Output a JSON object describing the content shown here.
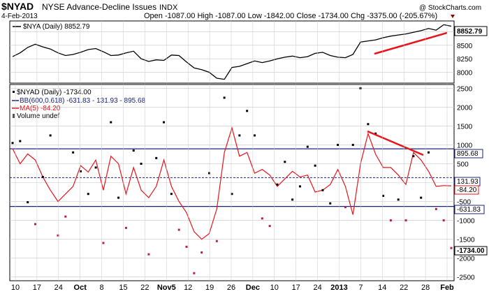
{
  "header": {
    "symbol": "$NYAD",
    "name": "NYSE Advance-Decline Issues",
    "exchange": "INDX",
    "watermark": "@ StockCharts.com",
    "date": "4-Feb-2013",
    "ohlc": "Open -1087.00  High -1087.00  Low -1842.00  Close -1734.00  Chg -3375.00 (-205.67%)"
  },
  "colors": {
    "nya_line": "#000000",
    "nyad_points": "#000000",
    "nyad_points_low": "#c2185b",
    "ma_line": "#e8141b",
    "bb_line": "#1a237e",
    "annotation": "#e8141b",
    "grid": "#c8c8c8"
  },
  "chart_data": [
    {
      "type": "line",
      "panel": "upper",
      "legend": "$NYA (Daily) 8852.79",
      "series": [
        {
          "name": "$NYA (Daily)",
          "x": [
            "Sep 10",
            "Sep 12",
            "Sep 14",
            "Sep 17",
            "Sep 19",
            "Sep 21",
            "Sep 24",
            "Sep 26",
            "Sep 28",
            "Oct 1",
            "Oct 3",
            "Oct 5",
            "Oct 8",
            "Oct 10",
            "Oct 12",
            "Oct 15",
            "Oct 17",
            "Oct 19",
            "Oct 22",
            "Oct 24",
            "Oct 26",
            "Oct 31",
            "Nov 2",
            "Nov 5",
            "Nov 7",
            "Nov 9",
            "Nov 12",
            "Nov 14",
            "Nov 16",
            "Nov 19",
            "Nov 21",
            "Nov 26",
            "Nov 28",
            "Nov 30",
            "Dec 3",
            "Dec 5",
            "Dec 7",
            "Dec 10",
            "Dec 12",
            "Dec 14",
            "Dec 17",
            "Dec 19",
            "Dec 21",
            "Dec 24",
            "Dec 27",
            "Dec 31",
            "Jan 2",
            "Jan 4",
            "Jan 8",
            "Jan 10",
            "Jan 14",
            "Jan 16",
            "Jan 18",
            "Jan 22",
            "Jan 24",
            "Jan 28",
            "Jan 30",
            "Feb 1",
            "Feb 4"
          ],
          "values": [
            8290,
            8360,
            8460,
            8520,
            8470,
            8430,
            8360,
            8310,
            8330,
            8370,
            8420,
            8440,
            8380,
            8310,
            8320,
            8360,
            8390,
            8250,
            8200,
            8230,
            8220,
            8320,
            8310,
            8190,
            8080,
            8050,
            8000,
            7890,
            7870,
            8090,
            8110,
            8160,
            8210,
            8180,
            8210,
            8250,
            8280,
            8300,
            8270,
            8290,
            8350,
            8370,
            8310,
            8280,
            8270,
            8330,
            8560,
            8580,
            8600,
            8640,
            8670,
            8690,
            8710,
            8740,
            8770,
            8810,
            8780,
            8880,
            8852.79
          ]
        }
      ],
      "ylim": [
        7800,
        8950
      ],
      "yticks": [
        8000,
        8250,
        8500,
        8750
      ],
      "value_label": "8852.79",
      "grid": true
    },
    {
      "type": "scatter",
      "panel": "lower",
      "legend": [
        {
          "label": "$NYAD (Daily) -1734.00"
        },
        {
          "label": "BB(600,0.618) -631.83 - 131.93 - 895.68"
        },
        {
          "label": "MA(5) -84.20"
        },
        {
          "label": "Volume undef"
        }
      ],
      "series": [
        {
          "name": "$NYAD (Daily)",
          "x": [
            "Sep 10",
            "Sep 12",
            "Sep 14",
            "Sep 17",
            "Sep 19",
            "Sep 21",
            "Sep 24",
            "Sep 26",
            "Sep 28",
            "Oct 1",
            "Oct 3",
            "Oct 5",
            "Oct 8",
            "Oct 10",
            "Oct 12",
            "Oct 15",
            "Oct 17",
            "Oct 19",
            "Oct 22",
            "Oct 24",
            "Oct 26",
            "Oct 31",
            "Nov 2",
            "Nov 5",
            "Nov 7",
            "Nov 9",
            "Nov 12",
            "Nov 14",
            "Nov 16",
            "Nov 19",
            "Nov 21",
            "Nov 26",
            "Nov 28",
            "Nov 30",
            "Dec 3",
            "Dec 5",
            "Dec 7",
            "Dec 10",
            "Dec 12",
            "Dec 14",
            "Dec 17",
            "Dec 19",
            "Dec 21",
            "Dec 24",
            "Dec 27",
            "Dec 31",
            "Jan 2",
            "Jan 4",
            "Jan 8",
            "Jan 10",
            "Jan 14",
            "Jan 16",
            "Jan 18",
            "Jan 22",
            "Jan 24",
            "Jan 28",
            "Jan 30",
            "Feb 1",
            "Feb 4"
          ],
          "values": [
            1050,
            1100,
            -520,
            -1100,
            150,
            1250,
            -1400,
            -900,
            800,
            300,
            -300,
            400,
            -1600,
            1600,
            -400,
            -1200,
            850,
            500,
            -1900,
            650,
            1600,
            -300,
            -1250,
            -1700,
            -2400,
            -1850,
            250,
            -1550,
            2250,
            -300,
            1250,
            1900,
            1250,
            -950,
            -1150,
            -50,
            550,
            -450,
            -100,
            950,
            450,
            -200,
            -550,
            1000,
            -650,
            1000,
            2500,
            1550,
            1300,
            -350,
            -1000,
            -450,
            -1000,
            700,
            -400,
            800,
            -700,
            -1000,
            -1734
          ]
        },
        {
          "name": "MA(5)",
          "x": [
            "Sep 10",
            "Sep 12",
            "Sep 14",
            "Sep 17",
            "Sep 19",
            "Sep 21",
            "Sep 24",
            "Sep 26",
            "Sep 28",
            "Oct 1",
            "Oct 3",
            "Oct 5",
            "Oct 8",
            "Oct 10",
            "Oct 12",
            "Oct 15",
            "Oct 17",
            "Oct 19",
            "Oct 22",
            "Oct 24",
            "Oct 26",
            "Oct 31",
            "Nov 2",
            "Nov 5",
            "Nov 7",
            "Nov 9",
            "Nov 12",
            "Nov 14",
            "Nov 16",
            "Nov 19",
            "Nov 21",
            "Nov 26",
            "Nov 28",
            "Nov 30",
            "Dec 3",
            "Dec 5",
            "Dec 7",
            "Dec 10",
            "Dec 12",
            "Dec 14",
            "Dec 17",
            "Dec 19",
            "Dec 21",
            "Dec 24",
            "Dec 27",
            "Dec 31",
            "Jan 2",
            "Jan 4",
            "Jan 8",
            "Jan 10",
            "Jan 14",
            "Jan 16",
            "Jan 18",
            "Jan 22",
            "Jan 24",
            "Jan 28",
            "Jan 30",
            "Feb 1",
            "Feb 4"
          ],
          "values": [
            900,
            500,
            760,
            600,
            150,
            -200,
            -500,
            -300,
            -100,
            450,
            280,
            600,
            -200,
            700,
            500,
            -300,
            400,
            -200,
            -400,
            -100,
            600,
            -100,
            -500,
            -800,
            -1300,
            -1500,
            -1350,
            -700,
            800,
            1450,
            700,
            800,
            250,
            350,
            200,
            -100,
            100,
            300,
            150,
            200,
            -250,
            -200,
            -50,
            350,
            -100,
            -850,
            500,
            1300,
            750,
            400,
            400,
            200,
            -50,
            800,
            600,
            300,
            -100,
            -80,
            -84.2
          ]
        }
      ],
      "bollinger": {
        "upper": 895.68,
        "middle": 131.93,
        "lower": -631.83
      },
      "ylim": [
        -2600,
        2600
      ],
      "yticks": [
        -2500,
        -2000,
        -1500,
        -1000,
        -500,
        0,
        500,
        1000,
        1500,
        2000,
        2500
      ],
      "value_labels": [
        "895.68",
        "131.93",
        "-84.20",
        "-631.83",
        "-1734.00"
      ],
      "xticks": [
        "10",
        "17",
        "24",
        "Oct",
        "8",
        "15",
        "22",
        "Nov5",
        "12",
        "19",
        "26",
        "Dec",
        "10",
        "17",
        "24",
        "2013",
        "7",
        "14",
        "22",
        "28",
        "Feb"
      ],
      "grid": true
    }
  ]
}
